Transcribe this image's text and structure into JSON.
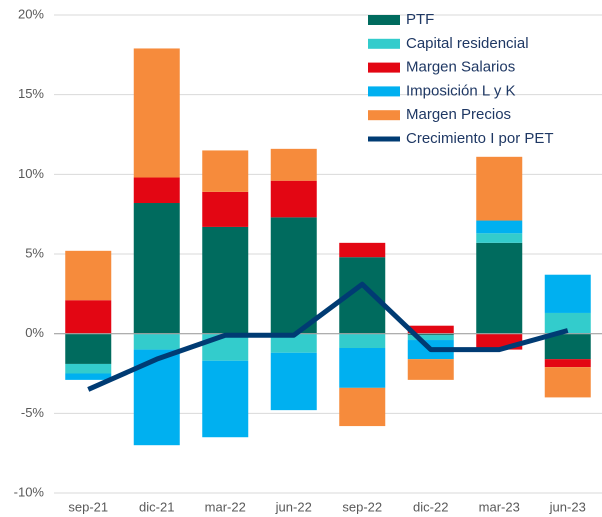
{
  "chart_data": {
    "type": "bar",
    "categories": [
      "sep-21",
      "dic-21",
      "mar-22",
      "jun-22",
      "sep-22",
      "dic-22",
      "mar-23",
      "jun-23"
    ],
    "series": [
      {
        "name": "PTF",
        "color": "#006b5e",
        "values": [
          -1.9,
          8.2,
          6.7,
          7.3,
          4.8,
          -0.1,
          5.7,
          -1.6
        ]
      },
      {
        "name": "Capital residencial",
        "color": "#33cccc",
        "values": [
          -0.6,
          -1.0,
          -1.7,
          -1.2,
          -0.9,
          -0.3,
          0.6,
          1.3
        ]
      },
      {
        "name": "Margen Salarios",
        "color": "#e30613",
        "values": [
          2.1,
          1.6,
          2.2,
          2.3,
          0.9,
          0.5,
          -1.0,
          -0.5
        ]
      },
      {
        "name": "Imposición L y K",
        "color": "#00b0f0",
        "values": [
          -0.4,
          -6.0,
          -4.8,
          -3.6,
          -2.5,
          -1.2,
          0.8,
          2.4
        ]
      },
      {
        "name": "Margen Precios",
        "color": "#f68b3c",
        "values": [
          3.1,
          8.1,
          2.6,
          2.0,
          -2.4,
          -1.3,
          4.0,
          -1.9
        ]
      },
      {
        "name": "Crecimiento I por PET",
        "type": "line",
        "color": "#003b73",
        "values": [
          -3.5,
          -1.6,
          -0.1,
          -0.1,
          3.1,
          -1.0,
          -1.0,
          0.2
        ]
      }
    ],
    "ylim": [
      -10,
      20
    ],
    "yticks": [
      {
        "value": -10,
        "label": "-10%"
      },
      {
        "value": -5,
        "label": "-5%"
      },
      {
        "value": 0,
        "label": "0%"
      },
      {
        "value": 5,
        "label": "5%"
      },
      {
        "value": 10,
        "label": "10%"
      },
      {
        "value": 15,
        "label": "15%"
      },
      {
        "value": 20,
        "label": "20%"
      }
    ],
    "grid": true,
    "legend": "top-right"
  }
}
